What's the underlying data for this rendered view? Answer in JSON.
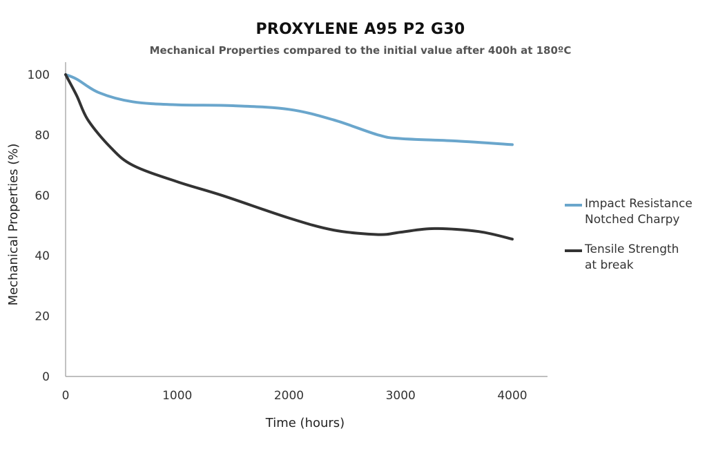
{
  "chart_data": {
    "type": "line",
    "title": "PROXYLENE A95 P2 G30",
    "subtitle": "Mechanical Properties compared to the initial value after 400h at 180ºC",
    "xlabel": "Time (hours)",
    "ylabel": "Mechanical Properties (%)",
    "xlim": [
      0,
      4400
    ],
    "ylim": [
      0,
      100
    ],
    "xticks": [
      "0",
      "1000",
      "2000",
      "3000",
      "4000"
    ],
    "xtick_values": [
      0,
      1000,
      2000,
      3000,
      4000
    ],
    "yticks": [
      "0",
      "20",
      "40",
      "60",
      "80",
      "100"
    ],
    "ytick_values": [
      0,
      20,
      40,
      60,
      80,
      100
    ],
    "grid": false,
    "legend_position": "right",
    "series": [
      {
        "name_lines": [
          "Impact Resistance",
          "Notched Charpy"
        ],
        "color": "#6aa6cc",
        "x": [
          0,
          100,
          300,
          600,
          1000,
          1500,
          2000,
          2400,
          2800,
          3000,
          3500,
          4000
        ],
        "y": [
          100,
          98.5,
          94,
          91,
          90,
          89.7,
          88.5,
          85,
          80,
          78.8,
          78,
          76.8
        ]
      },
      {
        "name_lines": [
          "Tensile Strength",
          "at break"
        ],
        "color": "#333333",
        "x": [
          0,
          100,
          200,
          400,
          600,
          1000,
          1400,
          2000,
          2400,
          2800,
          3000,
          3300,
          3700,
          4000
        ],
        "y": [
          100,
          93,
          85,
          76,
          70,
          64.5,
          60,
          52.5,
          48.5,
          47,
          47.8,
          49,
          48,
          45.5
        ]
      }
    ]
  }
}
